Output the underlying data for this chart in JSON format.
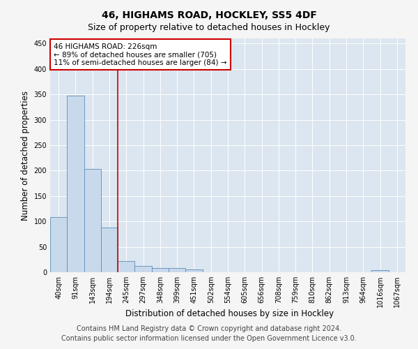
{
  "title_line1": "46, HIGHAMS ROAD, HOCKLEY, SS5 4DF",
  "title_line2": "Size of property relative to detached houses in Hockley",
  "xlabel": "Distribution of detached houses by size in Hockley",
  "ylabel": "Number of detached properties",
  "categories": [
    "40sqm",
    "91sqm",
    "143sqm",
    "194sqm",
    "245sqm",
    "297sqm",
    "348sqm",
    "399sqm",
    "451sqm",
    "502sqm",
    "554sqm",
    "605sqm",
    "656sqm",
    "708sqm",
    "759sqm",
    "810sqm",
    "862sqm",
    "913sqm",
    "964sqm",
    "1016sqm",
    "1067sqm"
  ],
  "values": [
    108,
    348,
    203,
    88,
    22,
    13,
    8,
    8,
    5,
    0,
    0,
    0,
    0,
    0,
    0,
    0,
    0,
    0,
    0,
    4,
    0
  ],
  "bar_color": "#c9d9ec",
  "bar_edge_color": "#5b8db8",
  "vline_index": 3.5,
  "vline_color": "#cc0000",
  "annotation_text": "46 HIGHAMS ROAD: 226sqm\n← 89% of detached houses are smaller (705)\n11% of semi-detached houses are larger (84) →",
  "annotation_box_color": "#ffffff",
  "annotation_box_edge_color": "#cc0000",
  "annotation_fontsize": 7.5,
  "ylim": [
    0,
    460
  ],
  "yticks": [
    0,
    50,
    100,
    150,
    200,
    250,
    300,
    350,
    400,
    450
  ],
  "grid_color": "#ffffff",
  "bg_color": "#dce6f0",
  "fig_bg_color": "#f5f5f5",
  "footer_text": "Contains HM Land Registry data © Crown copyright and database right 2024.\nContains public sector information licensed under the Open Government Licence v3.0.",
  "title_fontsize": 10,
  "subtitle_fontsize": 9,
  "axis_label_fontsize": 8.5,
  "tick_fontsize": 7,
  "footer_fontsize": 7
}
